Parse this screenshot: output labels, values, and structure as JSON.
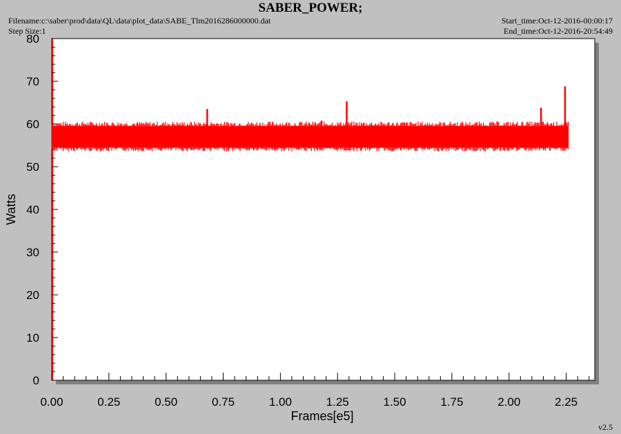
{
  "header": {
    "title": "SABER_POWER;",
    "filename": "Filename:c:\\saber\\prod\\data\\QL\\data\\plot_data\\SABE_Tlm2016286000000.dat",
    "step_size": "Step Size:1",
    "start_time": "Start_time:Oct-12-2016-00:00:17",
    "end_time": "End_time:Oct-12-2016-20:54:49",
    "version": "v2.5"
  },
  "colors": {
    "series": "#ff0000",
    "background": "#c0c0c0",
    "plot": "#ffffff"
  },
  "chart_data": {
    "type": "line",
    "title": "SABER_POWER;",
    "xlabel": "Frames[e5]",
    "ylabel": "Watts",
    "xlim": [
      0,
      2.375
    ],
    "ylim": [
      0,
      80
    ],
    "x_ticks": [
      "0.00",
      "0.25",
      "0.50",
      "0.75",
      "1.00",
      "1.25",
      "1.50",
      "1.75",
      "2.00",
      "2.25"
    ],
    "y_ticks": [
      "0",
      "10",
      "20",
      "30",
      "40",
      "50",
      "60",
      "70",
      "80"
    ],
    "grid": false,
    "series": [
      {
        "band": {
          "x_start": 0.0,
          "x_end": 2.26,
          "y_low": 54.5,
          "y_high": 59.5,
          "mean": 57
        },
        "x": [
          0.0,
          0.05,
          0.1,
          0.15,
          0.2,
          0.25,
          0.3,
          0.35,
          0.4,
          0.45,
          0.5,
          0.55,
          0.6,
          0.65,
          0.7,
          0.75,
          0.8,
          0.85,
          0.9,
          0.95,
          1.0,
          1.05,
          1.1,
          1.15,
          1.2,
          1.25,
          1.3,
          1.35,
          1.4,
          1.45,
          1.5,
          1.55,
          1.6,
          1.65,
          1.7,
          1.75,
          1.8,
          1.85,
          1.9,
          1.95,
          2.0,
          2.05,
          2.1,
          2.15,
          2.2,
          2.25
        ],
        "y": [
          57.2,
          56.8,
          57.5,
          56.9,
          57.3,
          57.0,
          56.7,
          57.4,
          57.1,
          56.9,
          57.3,
          57.0,
          57.2,
          56.8,
          57.4,
          57.0,
          56.9,
          57.3,
          57.1,
          56.8,
          57.2,
          57.0,
          56.9,
          57.4,
          57.1,
          57.0,
          56.8,
          57.3,
          57.1,
          56.9,
          57.2,
          57.0,
          57.3,
          56.9,
          57.1,
          57.2,
          57.0,
          56.8,
          57.3,
          57.1,
          56.9,
          57.2,
          57.0,
          57.3,
          56.8,
          57.1
        ],
        "spikes": [
          {
            "x": 0.68,
            "y": 63.5
          },
          {
            "x": 1.18,
            "y": 60.8
          },
          {
            "x": 1.29,
            "y": 65.3
          },
          {
            "x": 2.14,
            "y": 63.8
          },
          {
            "x": 2.245,
            "y": 68.8
          }
        ]
      }
    ]
  }
}
